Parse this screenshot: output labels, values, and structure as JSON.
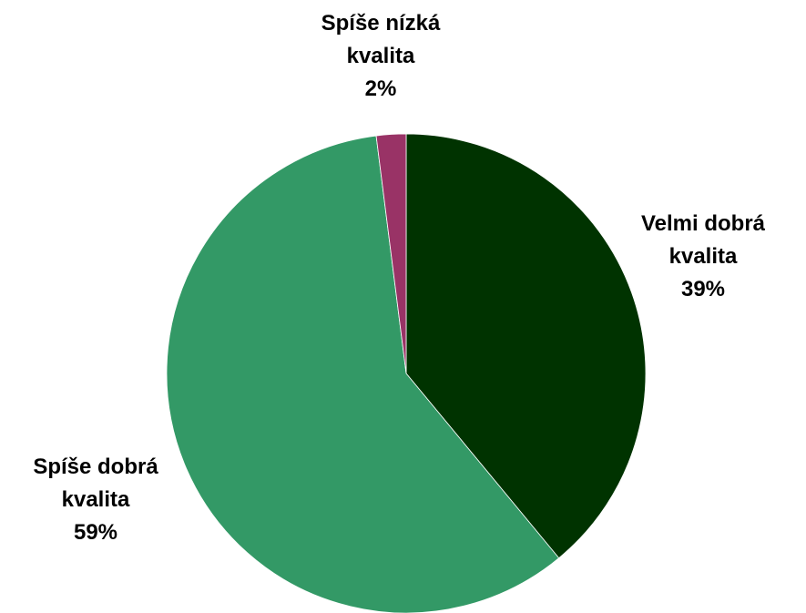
{
  "chart_data": {
    "type": "pie",
    "categories": [
      "Velmi dobrá kvalita",
      "Spíše dobrá kvalita",
      "Spíše nízká kvalita"
    ],
    "values": [
      39,
      59,
      2
    ],
    "value_labels": [
      "39%",
      "59%",
      "2%"
    ],
    "colors": [
      "#003300",
      "#339966",
      "#993366"
    ]
  }
}
